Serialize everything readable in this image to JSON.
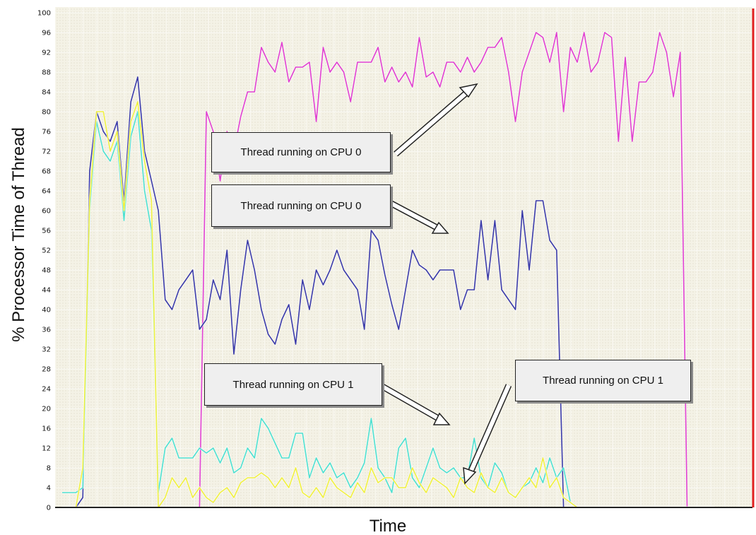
{
  "chart_data": {
    "type": "line",
    "title": "",
    "xlabel": "Time",
    "ylabel": "% Processor Time of Thread",
    "ylim": [
      0,
      100
    ],
    "yticks": [
      0,
      4,
      8,
      12,
      16,
      20,
      24,
      28,
      32,
      36,
      40,
      44,
      48,
      52,
      56,
      60,
      64,
      68,
      72,
      76,
      80,
      84,
      88,
      92,
      96,
      100
    ],
    "xlim": [
      0,
      100
    ],
    "grid": true,
    "legend": "none",
    "series": [
      {
        "color": "#e040d0",
        "x": [
          0,
          1,
          2,
          3,
          4,
          5,
          6,
          7,
          8,
          9,
          10,
          11,
          12,
          13,
          14,
          15,
          16,
          17,
          18,
          19,
          20,
          21,
          22,
          23,
          24,
          25,
          26,
          27,
          28,
          29,
          30,
          31,
          32,
          33,
          34,
          35,
          36,
          37,
          38,
          39,
          40,
          41,
          42,
          43,
          44,
          45,
          46,
          47,
          48,
          49,
          50,
          51,
          52,
          53,
          54,
          55,
          56,
          57,
          58,
          59,
          60,
          61,
          62,
          63,
          64,
          65,
          66,
          67,
          68,
          69,
          70,
          71,
          72,
          73,
          74,
          75,
          76,
          77,
          78,
          79,
          80,
          81,
          82,
          83,
          84,
          85,
          86,
          87,
          88,
          89,
          90,
          91,
          92,
          93,
          94,
          95
        ],
        "y": [
          0,
          0,
          0,
          0,
          0,
          0,
          0,
          0,
          0,
          0,
          0,
          0,
          0,
          0,
          0,
          0,
          0,
          0,
          0,
          0,
          0,
          80,
          76,
          66,
          76,
          72,
          79,
          84,
          84,
          93,
          90,
          88,
          94,
          86,
          89,
          89,
          90,
          78,
          93,
          88,
          90,
          88,
          82,
          90,
          90,
          90,
          93,
          86,
          89,
          86,
          88,
          85,
          95,
          87,
          88,
          85,
          90,
          90,
          88,
          91,
          88,
          90,
          93,
          93,
          95,
          88,
          78,
          88,
          92,
          96,
          95,
          90,
          96,
          80,
          93,
          90,
          96,
          88,
          90,
          96,
          95,
          74,
          91,
          74,
          86,
          86,
          88,
          96,
          92,
          83,
          92,
          0,
          0,
          0,
          0,
          0
        ]
      },
      {
        "color": "#3a3aa8",
        "x": [
          0,
          1,
          2,
          3,
          4,
          5,
          6,
          7,
          8,
          9,
          10,
          11,
          12,
          13,
          14,
          15,
          16,
          17,
          18,
          19,
          20,
          21,
          22,
          23,
          24,
          25,
          26,
          27,
          28,
          29,
          30,
          31,
          32,
          33,
          34,
          35,
          36,
          37,
          38,
          39,
          40,
          41,
          42,
          43,
          44,
          45,
          46,
          47,
          48,
          49,
          50,
          51,
          52,
          53,
          54,
          55,
          56,
          57,
          58,
          59,
          60,
          61,
          62,
          63,
          64,
          65,
          66,
          67,
          68,
          69,
          70,
          71,
          72,
          73,
          74,
          75,
          76,
          77,
          78,
          79,
          80,
          81,
          82,
          83,
          84,
          85,
          86,
          87,
          88,
          89,
          90,
          91,
          92,
          93,
          94,
          95
        ],
        "y": [
          0,
          0,
          0,
          2,
          68,
          80,
          76,
          74,
          78,
          62,
          82,
          87,
          72,
          66,
          60,
          42,
          40,
          44,
          46,
          48,
          36,
          38,
          46,
          42,
          52,
          31,
          44,
          54,
          48,
          40,
          35,
          33,
          38,
          41,
          33,
          46,
          40,
          48,
          45,
          48,
          52,
          48,
          46,
          44,
          36,
          56,
          54,
          47,
          41,
          36,
          44,
          52,
          49,
          48,
          46,
          48,
          48,
          48,
          40,
          44,
          44,
          58,
          46,
          58,
          44,
          42,
          40,
          60,
          48,
          62,
          62,
          54,
          52,
          0,
          0,
          0,
          0,
          0,
          0,
          0,
          0,
          0,
          0,
          0,
          0,
          0,
          0,
          0,
          0,
          0,
          0,
          0,
          0,
          0,
          0,
          0
        ]
      },
      {
        "color": "#4de0d0",
        "x": [
          0,
          1,
          2,
          3,
          4,
          5,
          6,
          7,
          8,
          9,
          10,
          11,
          12,
          13,
          14,
          15,
          16,
          17,
          18,
          19,
          20,
          21,
          22,
          23,
          24,
          25,
          26,
          27,
          28,
          29,
          30,
          31,
          32,
          33,
          34,
          35,
          36,
          37,
          38,
          39,
          40,
          41,
          42,
          43,
          44,
          45,
          46,
          47,
          48,
          49,
          50,
          51,
          52,
          53,
          54,
          55,
          56,
          57,
          58,
          59,
          60,
          61,
          62,
          63,
          64,
          65,
          66,
          67,
          68,
          69,
          70,
          71,
          72,
          73,
          74,
          75,
          76,
          77,
          78,
          79,
          80,
          81,
          82,
          83,
          84,
          85,
          86,
          87,
          88,
          89,
          90,
          91,
          92,
          93,
          94,
          95
        ],
        "y": [
          3,
          3,
          3,
          4,
          60,
          78,
          72,
          70,
          74,
          58,
          75,
          80,
          64,
          56,
          3,
          12,
          14,
          10,
          10,
          10,
          12,
          11,
          12,
          9,
          12,
          7,
          8,
          12,
          10,
          18,
          16,
          13,
          10,
          10,
          15,
          15,
          6,
          10,
          7,
          9,
          6,
          7,
          4,
          6,
          9,
          18,
          8,
          6,
          3,
          12,
          14,
          6,
          4,
          8,
          12,
          8,
          7,
          8,
          6,
          6,
          14,
          6,
          4,
          9,
          7,
          3,
          2,
          4,
          5,
          8,
          5,
          10,
          6,
          8,
          1,
          0,
          0,
          0,
          0,
          0,
          0,
          0,
          0,
          0,
          0,
          0,
          0,
          0,
          0,
          0,
          0,
          0,
          0,
          0,
          0,
          0
        ]
      },
      {
        "color": "#f0f040",
        "x": [
          0,
          1,
          2,
          3,
          4,
          5,
          6,
          7,
          8,
          9,
          10,
          11,
          12,
          13,
          14,
          15,
          16,
          17,
          18,
          19,
          20,
          21,
          22,
          23,
          24,
          25,
          26,
          27,
          28,
          29,
          30,
          31,
          32,
          33,
          34,
          35,
          36,
          37,
          38,
          39,
          40,
          41,
          42,
          43,
          44,
          45,
          46,
          47,
          48,
          49,
          50,
          51,
          52,
          53,
          54,
          55,
          56,
          57,
          58,
          59,
          60,
          61,
          62,
          63,
          64,
          65,
          66,
          67,
          68,
          69,
          70,
          71,
          72,
          73,
          74,
          75,
          76,
          77,
          78,
          79,
          80,
          81,
          82,
          83,
          84,
          85,
          86,
          87,
          88,
          89,
          90,
          91,
          92,
          93,
          94,
          95
        ],
        "y": [
          0,
          0,
          0,
          8,
          62,
          80,
          80,
          72,
          76,
          60,
          78,
          82,
          70,
          62,
          0,
          2,
          6,
          4,
          6,
          2,
          4,
          2,
          1,
          3,
          4,
          2,
          5,
          6,
          6,
          7,
          6,
          4,
          6,
          4,
          8,
          3,
          2,
          4,
          2,
          6,
          4,
          3,
          2,
          5,
          3,
          8,
          5,
          6,
          6,
          4,
          4,
          8,
          5,
          3,
          6,
          5,
          4,
          2,
          6,
          4,
          3,
          7,
          4,
          3,
          6,
          3,
          2,
          4,
          6,
          4,
          10,
          4,
          6,
          2,
          1,
          0,
          0,
          0,
          0,
          0,
          0,
          0,
          0,
          0,
          0,
          0,
          0,
          0,
          0,
          0,
          0,
          0,
          0,
          0,
          0,
          0
        ]
      }
    ],
    "annotations": [
      {
        "text": "Thread running on CPU 0"
      },
      {
        "text": "Thread running on CPU 0"
      },
      {
        "text": "Thread running on CPU 1"
      },
      {
        "text": "Thread running on CPU 1"
      }
    ]
  }
}
